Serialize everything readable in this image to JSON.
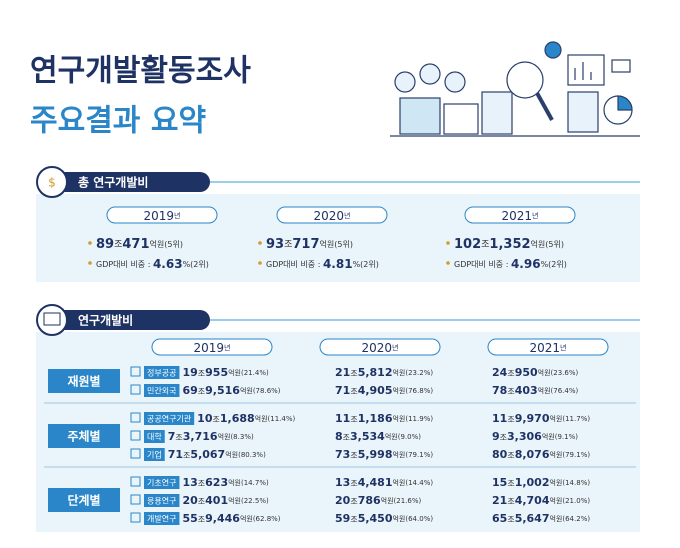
{
  "header": {
    "title": "연구개발활동조사",
    "subtitle": "주요결과 요약"
  },
  "units": {
    "year": "년",
    "jo": "조",
    "eok": "억원",
    "gdp_label": "GDP대비 비중 : ",
    "percent": "%"
  },
  "total": {
    "label": "총 연구개발비",
    "years": [
      {
        "year": "2019",
        "jo": "89",
        "eok": "471",
        "rank": "(5위)",
        "gdp": "4.63",
        "gdp_rank": "(2위)"
      },
      {
        "year": "2020",
        "jo": "93",
        "eok": "717",
        "rank": "(5위)",
        "gdp": "4.81",
        "gdp_rank": "(2위)"
      },
      {
        "year": "2021",
        "jo": "102",
        "eok": "1,352",
        "rank": "(5위)",
        "gdp": "4.96",
        "gdp_rank": "(2위)"
      }
    ]
  },
  "breakdown": {
    "label": "연구개발비",
    "years": [
      "2019",
      "2020",
      "2021"
    ],
    "groups": [
      {
        "name": "재원별",
        "rows": [
          {
            "label": "정부공공",
            "cells": [
              {
                "jo": "19",
                "eok": "955",
                "share": "(21.4%)"
              },
              {
                "jo": "21",
                "eok": "5,812",
                "share": "(23.2%)"
              },
              {
                "jo": "24",
                "eok": "950",
                "share": "(23.6%)"
              }
            ]
          },
          {
            "label": "민간외국",
            "cells": [
              {
                "jo": "69",
                "eok": "9,516",
                "share": "(78.6%)"
              },
              {
                "jo": "71",
                "eok": "4,905",
                "share": "(76.8%)"
              },
              {
                "jo": "78",
                "eok": "403",
                "share": "(76.4%)"
              }
            ]
          }
        ]
      },
      {
        "name": "주체별",
        "rows": [
          {
            "label": "공공연구기관",
            "cells": [
              {
                "jo": "10",
                "eok": "1,688",
                "share": "(11.4%)"
              },
              {
                "jo": "11",
                "eok": "1,186",
                "share": "(11.9%)"
              },
              {
                "jo": "11",
                "eok": "9,970",
                "share": "(11.7%)"
              }
            ]
          },
          {
            "label": "대학",
            "cells": [
              {
                "jo": "7",
                "eok": "3,716",
                "share": "(8.3%)"
              },
              {
                "jo": "8",
                "eok": "3,534",
                "share": "(9.0%)"
              },
              {
                "jo": "9",
                "eok": "3,306",
                "share": "(9.1%)"
              }
            ]
          },
          {
            "label": "기업",
            "cells": [
              {
                "jo": "71",
                "eok": "5,067",
                "share": "(80.3%)"
              },
              {
                "jo": "73",
                "eok": "5,998",
                "share": "(79.1%)"
              },
              {
                "jo": "80",
                "eok": "8,076",
                "share": "(79.1%)"
              }
            ]
          }
        ]
      },
      {
        "name": "단계별",
        "rows": [
          {
            "label": "기초연구",
            "cells": [
              {
                "jo": "13",
                "eok": "623",
                "share": "(14.7%)"
              },
              {
                "jo": "13",
                "eok": "4,481",
                "share": "(14.4%)"
              },
              {
                "jo": "15",
                "eok": "1,002",
                "share": "(14.8%)"
              }
            ]
          },
          {
            "label": "응용연구",
            "cells": [
              {
                "jo": "20",
                "eok": "401",
                "share": "(22.5%)"
              },
              {
                "jo": "20",
                "eok": "786",
                "share": "(21.6%)"
              },
              {
                "jo": "21",
                "eok": "4,704",
                "share": "(21.0%)"
              }
            ]
          },
          {
            "label": "개발연구",
            "cells": [
              {
                "jo": "55",
                "eok": "9,446",
                "share": "(62.8%)"
              },
              {
                "jo": "59",
                "eok": "5,450",
                "share": "(64.0%)"
              },
              {
                "jo": "65",
                "eok": "5,647",
                "share": "(64.2%)"
              }
            ]
          }
        ]
      }
    ]
  }
}
